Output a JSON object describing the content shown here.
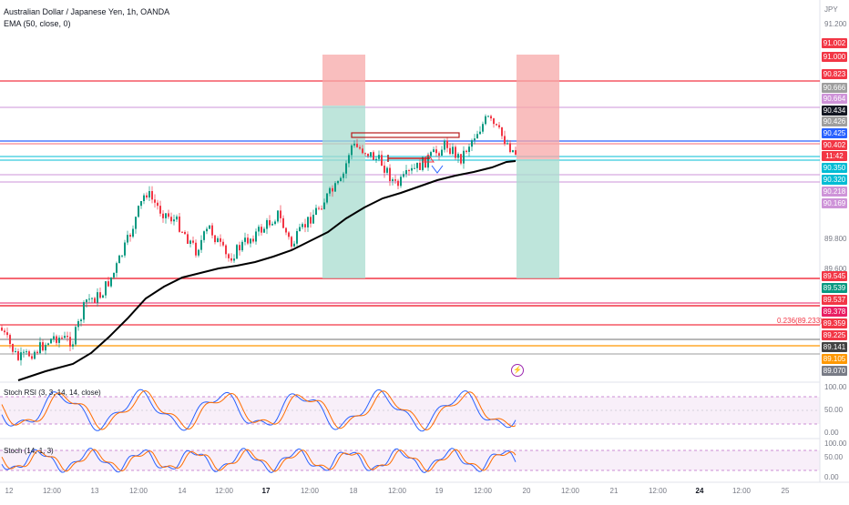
{
  "header": {
    "symbol_line": "Australian Dollar / Japanese Yen, 1h, OANDA",
    "indicator_line": "EMA (50, close, 0)"
  },
  "price_axis": {
    "currency": "JPY",
    "ticks": [
      "91.200",
      "89.800",
      "89.600"
    ]
  },
  "price_tags": [
    {
      "text": "91.002",
      "color": "#f23645"
    },
    {
      "text": "91.000",
      "color": "#f23645"
    },
    {
      "text": "90.823",
      "color": "#f23645"
    },
    {
      "text": "90.666",
      "color": "#9e9e9e"
    },
    {
      "text": "90.664",
      "color": "#ce93d8"
    },
    {
      "text": "90.434",
      "color": "#131722"
    },
    {
      "text": "90.426",
      "color": "#9e9e9e"
    },
    {
      "text": "90.425",
      "color": "#2962ff"
    },
    {
      "text": "90.402",
      "color": "#f23645"
    },
    {
      "text": "11:42",
      "color": "#f23645"
    },
    {
      "text": "90.350",
      "color": "#00bcd4"
    },
    {
      "text": "90.320",
      "color": "#00bcd4"
    },
    {
      "text": "90.218",
      "color": "#ce93d8"
    },
    {
      "text": "90.169",
      "color": "#ce93d8"
    },
    {
      "text": "89.545",
      "color": "#f23645"
    },
    {
      "text": "89.539",
      "color": "#089981"
    },
    {
      "text": "89.537",
      "color": "#f23645"
    },
    {
      "text": "89.378",
      "color": "#e91e63"
    },
    {
      "text": "89.359",
      "color": "#f23645"
    },
    {
      "text": "89.225",
      "color": "#f23645"
    },
    {
      "text": "89.141",
      "color": "#424242"
    },
    {
      "text": "89.105",
      "color": "#ff9800"
    },
    {
      "text": "89.070",
      "color": "#787b86"
    }
  ],
  "fib_label": "0.236(89.233)",
  "time_axis": {
    "labels": [
      {
        "text": "12",
        "bold": false
      },
      {
        "text": "12:00",
        "bold": false
      },
      {
        "text": "13",
        "bold": false
      },
      {
        "text": "12:00",
        "bold": false
      },
      {
        "text": "14",
        "bold": false
      },
      {
        "text": "12:00",
        "bold": false
      },
      {
        "text": "17",
        "bold": true
      },
      {
        "text": "12:00",
        "bold": false
      },
      {
        "text": "18",
        "bold": false
      },
      {
        "text": "12:00",
        "bold": false
      },
      {
        "text": "19",
        "bold": false
      },
      {
        "text": "12:00",
        "bold": false
      },
      {
        "text": "20",
        "bold": false
      },
      {
        "text": "12:00",
        "bold": false
      },
      {
        "text": "21",
        "bold": false
      },
      {
        "text": "12:00",
        "bold": false
      },
      {
        "text": "24",
        "bold": true
      },
      {
        "text": "12:00",
        "bold": false
      },
      {
        "text": "25",
        "bold": false
      }
    ]
  },
  "stoch_rsi": {
    "title": "Stoch RSI (3, 3, 14, 14, close)",
    "ticks": [
      "100.00",
      "50.00",
      "0.00"
    ]
  },
  "stoch": {
    "title": "Stoch (14, 1, 3)",
    "ticks": [
      "100.00",
      "50.00",
      "0.00"
    ]
  },
  "colors": {
    "up": "#089981",
    "down": "#f23645",
    "ema": "#000000",
    "k_line": "#2962ff",
    "d_line": "#ff6d00"
  },
  "icons": {
    "alert": "lightning-icon"
  }
}
